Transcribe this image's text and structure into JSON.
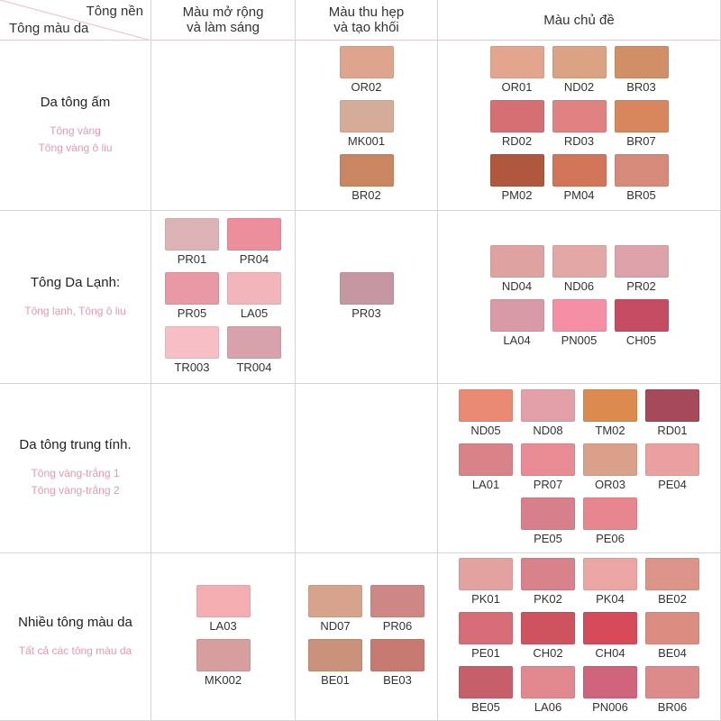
{
  "header": {
    "corner_top": "Tông nền",
    "corner_bottom": "Tông màu da",
    "columns": [
      [
        "Màu mở rộng",
        "và làm sáng"
      ],
      [
        "Màu thu hẹp",
        "và tạo khối"
      ],
      [
        "Màu chủ đề"
      ]
    ]
  },
  "rows": [
    {
      "title": "Da tông ấm",
      "subtitles": [
        "Tông vàng",
        "Tông vàng ô liu"
      ],
      "cells": [
        [],
        [
          {
            "name": "OR02",
            "color": "#dea48e"
          },
          {
            "name": "MK001",
            "color": "#d5ac98"
          },
          {
            "name": "BR02",
            "color": "#c98660"
          }
        ],
        [
          {
            "name": "OR01",
            "color": "#e4a58f"
          },
          {
            "name": "ND02",
            "color": "#dba283"
          },
          {
            "name": "BR03",
            "color": "#d08f66"
          },
          {
            "name": "RD02",
            "color": "#d56f74"
          },
          {
            "name": "RD03",
            "color": "#e08282"
          },
          {
            "name": "BR07",
            "color": "#d8865e"
          },
          {
            "name": "PM02",
            "color": "#b0583e"
          },
          {
            "name": "PM04",
            "color": "#d27457"
          },
          {
            "name": "BR05",
            "color": "#d58a7a"
          }
        ]
      ]
    },
    {
      "title": "Tông Da Lạnh:",
      "subtitles": [
        "Tông lạnh, Tông ô liu"
      ],
      "cells": [
        [
          {
            "name": "PR01",
            "color": "#ddb3b8"
          },
          {
            "name": "PR04",
            "color": "#ec8e9b"
          },
          {
            "name": "PR05",
            "color": "#e899a4"
          },
          {
            "name": "LA05",
            "color": "#f2b5bb"
          },
          {
            "name": "TR003",
            "color": "#f6bfc6"
          },
          {
            "name": "TR004",
            "color": "#d7a2ac"
          }
        ],
        [
          {
            "name": "PR03",
            "color": "#c497a2"
          }
        ],
        [
          {
            "name": "ND04",
            "color": "#dea3a0"
          },
          {
            "name": "ND06",
            "color": "#e3a8a6"
          },
          {
            "name": "PR02",
            "color": "#dea2aa"
          },
          {
            "name": "LA04",
            "color": "#d89aa7"
          },
          {
            "name": "PN005",
            "color": "#f58fa5"
          },
          {
            "name": "CH05",
            "color": "#c54c63"
          }
        ]
      ]
    },
    {
      "title": "Da tông trung tính.",
      "subtitles": [
        "Tông vàng-trắng 1",
        "Tông vàng-trắng 2"
      ],
      "cells": [
        [],
        [],
        [
          {
            "name": "ND05",
            "color": "#ea8a72"
          },
          {
            "name": "ND08",
            "color": "#e3a0a8"
          },
          {
            "name": "TM02",
            "color": "#dd8a4e"
          },
          {
            "name": "RD01",
            "color": "#a6495a"
          },
          {
            "name": "LA01",
            "color": "#d88388"
          },
          {
            "name": "PR07",
            "color": "#e88b93"
          },
          {
            "name": "OR03",
            "color": "#dba08a"
          },
          {
            "name": "PE04",
            "color": "#eba0a0"
          },
          {
            "name": "PE05",
            "color": "#d77f8a"
          },
          {
            "name": "PE06",
            "color": "#e7868e"
          }
        ]
      ]
    },
    {
      "title": "Nhiều tông màu da",
      "subtitles": [
        "Tất cả các tông màu da"
      ],
      "cells": [
        [
          {
            "name": "LA03",
            "color": "#f4aeb1"
          },
          {
            "name": "MK002",
            "color": "#d59e9f"
          }
        ],
        [
          {
            "name": "ND07",
            "color": "#d6a48c"
          },
          {
            "name": "PR06",
            "color": "#ce8785"
          },
          {
            "name": "BE01",
            "color": "#c9907a"
          },
          {
            "name": "BE03",
            "color": "#c77a72"
          }
        ],
        [
          {
            "name": "PK01",
            "color": "#e3a2a0"
          },
          {
            "name": "PK02",
            "color": "#d8828b"
          },
          {
            "name": "PK04",
            "color": "#eba6a4"
          },
          {
            "name": "BE02",
            "color": "#dc9488"
          },
          {
            "name": "PE01",
            "color": "#d66d76"
          },
          {
            "name": "CH02",
            "color": "#cf535f"
          },
          {
            "name": "CH04",
            "color": "#d64a5a"
          },
          {
            "name": "BE04",
            "color": "#db8d82"
          },
          {
            "name": "BE05",
            "color": "#c75f6b"
          },
          {
            "name": "LA06",
            "color": "#e1898e"
          },
          {
            "name": "PN006",
            "color": "#d0647c"
          },
          {
            "name": "BR06",
            "color": "#dc8b8a"
          }
        ]
      ]
    }
  ]
}
